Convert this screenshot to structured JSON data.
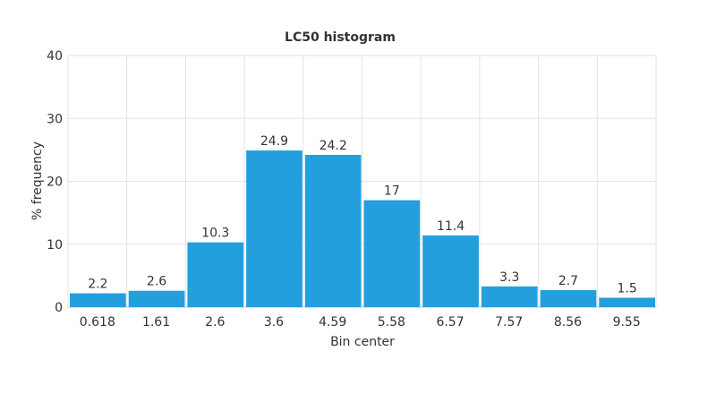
{
  "chart_data": {
    "type": "bar",
    "title": "LC50 histogram",
    "xlabel": "Bin center",
    "ylabel": "% frequency",
    "categories": [
      "0.618",
      "1.61",
      "2.6",
      "3.6",
      "4.59",
      "5.58",
      "6.57",
      "7.57",
      "8.56",
      "9.55"
    ],
    "values": [
      2.2,
      2.6,
      10.3,
      24.9,
      24.2,
      17,
      11.4,
      3.3,
      2.7,
      1.5
    ],
    "data_labels": [
      "2.2",
      "2.6",
      "10.3",
      "24.9",
      "24.2",
      "17",
      "11.4",
      "3.3",
      "2.7",
      "1.5"
    ],
    "ylim": [
      0,
      40
    ],
    "yticks": [
      "0",
      "10",
      "20",
      "30",
      "40"
    ],
    "grid": true,
    "legend": "none",
    "bar_color": "#249fde"
  }
}
